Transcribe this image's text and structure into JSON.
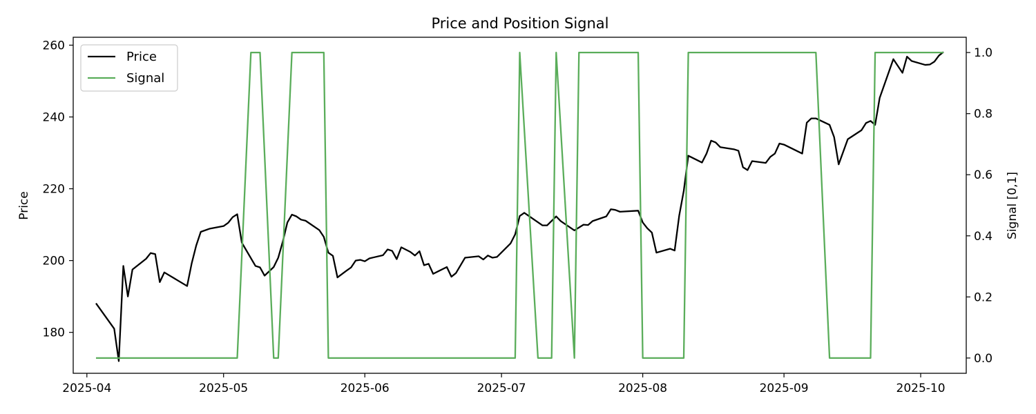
{
  "chart_data": {
    "type": "line",
    "title": "Price and Position Signal",
    "xlabel": "",
    "ylabel": "Price",
    "y2label": "Signal [0,1]",
    "x_type": "date",
    "xlim": [
      "2025-03-29",
      "2025-10-11"
    ],
    "ylim": [
      168.6,
      262.2
    ],
    "y2lim": [
      -0.05,
      1.05
    ],
    "xticks": [
      "2025-04-01",
      "2025-05-01",
      "2025-06-01",
      "2025-07-01",
      "2025-08-01",
      "2025-09-01",
      "2025-10-01"
    ],
    "xtick_labels": [
      "2025-04",
      "2025-05",
      "2025-06",
      "2025-07",
      "2025-08",
      "2025-09",
      "2025-10"
    ],
    "yticks": [
      180,
      200,
      220,
      240,
      260
    ],
    "y2ticks": [
      0.0,
      0.2,
      0.4,
      0.6,
      0.8,
      1.0
    ],
    "y2tick_labels": [
      "0.0",
      "0.2",
      "0.4",
      "0.6",
      "0.8",
      "1.0"
    ],
    "grid": false,
    "legend_position": "top-left",
    "series": [
      {
        "name": "Price",
        "axis": "left",
        "color": "#000000",
        "points": [
          [
            "2025-04-03",
            188.1
          ],
          [
            "2025-04-07",
            181.0
          ],
          [
            "2025-04-08",
            172.0
          ],
          [
            "2025-04-09",
            198.5
          ],
          [
            "2025-04-10",
            190.0
          ],
          [
            "2025-04-11",
            197.5
          ],
          [
            "2025-04-14",
            200.5
          ],
          [
            "2025-04-15",
            202.1
          ],
          [
            "2025-04-16",
            201.8
          ],
          [
            "2025-04-17",
            194.0
          ],
          [
            "2025-04-18",
            196.7
          ],
          [
            "2025-04-23",
            192.9
          ],
          [
            "2025-04-24",
            199.2
          ],
          [
            "2025-04-25",
            204.2
          ],
          [
            "2025-04-26",
            208.0
          ],
          [
            "2025-04-28",
            208.9
          ],
          [
            "2025-05-01",
            209.6
          ],
          [
            "2025-05-02",
            210.5
          ],
          [
            "2025-05-03",
            212.1
          ],
          [
            "2025-05-04",
            212.9
          ],
          [
            "2025-05-05",
            205.0
          ],
          [
            "2025-05-08",
            198.5
          ],
          [
            "2025-05-09",
            198.1
          ],
          [
            "2025-05-10",
            195.8
          ],
          [
            "2025-05-12",
            198.2
          ],
          [
            "2025-05-13",
            200.8
          ],
          [
            "2025-05-14",
            205.3
          ],
          [
            "2025-05-15",
            210.6
          ],
          [
            "2025-05-16",
            212.8
          ],
          [
            "2025-05-17",
            212.3
          ],
          [
            "2025-05-18",
            211.4
          ],
          [
            "2025-05-19",
            211.1
          ],
          [
            "2025-05-22",
            208.5
          ],
          [
            "2025-05-23",
            206.6
          ],
          [
            "2025-05-24",
            202.2
          ],
          [
            "2025-05-25",
            201.3
          ],
          [
            "2025-05-26",
            195.3
          ],
          [
            "2025-05-28",
            197.2
          ],
          [
            "2025-05-29",
            198.1
          ],
          [
            "2025-05-30",
            200.0
          ],
          [
            "2025-05-31",
            200.2
          ],
          [
            "2025-06-01",
            199.8
          ],
          [
            "2025-06-02",
            200.6
          ],
          [
            "2025-06-03",
            200.9
          ],
          [
            "2025-06-05",
            201.5
          ],
          [
            "2025-06-06",
            203.1
          ],
          [
            "2025-06-07",
            202.7
          ],
          [
            "2025-06-08",
            200.4
          ],
          [
            "2025-06-09",
            203.7
          ],
          [
            "2025-06-11",
            202.4
          ],
          [
            "2025-06-12",
            201.4
          ],
          [
            "2025-06-13",
            202.6
          ],
          [
            "2025-06-14",
            198.7
          ],
          [
            "2025-06-15",
            199.1
          ],
          [
            "2025-06-16",
            196.3
          ],
          [
            "2025-06-19",
            198.2
          ],
          [
            "2025-06-20",
            195.5
          ],
          [
            "2025-06-21",
            196.5
          ],
          [
            "2025-06-23",
            200.8
          ],
          [
            "2025-06-26",
            201.2
          ],
          [
            "2025-06-27",
            200.3
          ],
          [
            "2025-06-28",
            201.4
          ],
          [
            "2025-06-29",
            200.8
          ],
          [
            "2025-06-30",
            201.0
          ],
          [
            "2025-07-03",
            204.8
          ],
          [
            "2025-07-04",
            207.3
          ],
          [
            "2025-07-05",
            212.4
          ],
          [
            "2025-07-06",
            213.3
          ],
          [
            "2025-07-10",
            209.8
          ],
          [
            "2025-07-11",
            209.8
          ],
          [
            "2025-07-13",
            212.3
          ],
          [
            "2025-07-14",
            211.0
          ],
          [
            "2025-07-17",
            208.4
          ],
          [
            "2025-07-18",
            209.2
          ],
          [
            "2025-07-19",
            210.0
          ],
          [
            "2025-07-20",
            209.9
          ],
          [
            "2025-07-21",
            211.0
          ],
          [
            "2025-07-24",
            212.3
          ],
          [
            "2025-07-25",
            214.3
          ],
          [
            "2025-07-26",
            214.1
          ],
          [
            "2025-07-27",
            213.6
          ],
          [
            "2025-07-31",
            213.9
          ],
          [
            "2025-08-01",
            210.6
          ],
          [
            "2025-08-02",
            209.0
          ],
          [
            "2025-08-03",
            207.8
          ],
          [
            "2025-08-04",
            202.2
          ],
          [
            "2025-08-07",
            203.3
          ],
          [
            "2025-08-08",
            202.8
          ],
          [
            "2025-08-09",
            212.5
          ],
          [
            "2025-08-10",
            219.4
          ],
          [
            "2025-08-11",
            229.2
          ],
          [
            "2025-08-14",
            227.3
          ],
          [
            "2025-08-15",
            229.8
          ],
          [
            "2025-08-16",
            233.4
          ],
          [
            "2025-08-17",
            232.9
          ],
          [
            "2025-08-18",
            231.6
          ],
          [
            "2025-08-21",
            231.0
          ],
          [
            "2025-08-22",
            230.6
          ],
          [
            "2025-08-23",
            226.0
          ],
          [
            "2025-08-24",
            225.2
          ],
          [
            "2025-08-25",
            227.7
          ],
          [
            "2025-08-28",
            227.2
          ],
          [
            "2025-08-29",
            228.9
          ],
          [
            "2025-08-30",
            229.8
          ],
          [
            "2025-08-31",
            232.6
          ],
          [
            "2025-09-01",
            232.3
          ],
          [
            "2025-09-05",
            229.8
          ],
          [
            "2025-09-06",
            238.4
          ],
          [
            "2025-09-07",
            239.6
          ],
          [
            "2025-09-08",
            239.6
          ],
          [
            "2025-09-11",
            237.8
          ],
          [
            "2025-09-12",
            234.4
          ],
          [
            "2025-09-13",
            226.8
          ],
          [
            "2025-09-15",
            233.8
          ],
          [
            "2025-09-18",
            236.3
          ],
          [
            "2025-09-19",
            238.3
          ],
          [
            "2025-09-20",
            238.9
          ],
          [
            "2025-09-21",
            237.8
          ],
          [
            "2025-09-22",
            245.3
          ],
          [
            "2025-09-25",
            256.1
          ],
          [
            "2025-09-27",
            252.3
          ],
          [
            "2025-09-28",
            256.8
          ],
          [
            "2025-09-29",
            255.6
          ],
          [
            "2025-10-02",
            254.5
          ],
          [
            "2025-10-03",
            254.6
          ],
          [
            "2025-10-04",
            255.4
          ],
          [
            "2025-10-05",
            257.1
          ],
          [
            "2025-10-06",
            258.1
          ]
        ]
      },
      {
        "name": "Signal",
        "axis": "right",
        "color": "#5aad5a",
        "points": [
          [
            "2025-04-03",
            0
          ],
          [
            "2025-05-04",
            0
          ],
          [
            "2025-05-07",
            1
          ],
          [
            "2025-05-09",
            1
          ],
          [
            "2025-05-12",
            0
          ],
          [
            "2025-05-13",
            0
          ],
          [
            "2025-05-16",
            1
          ],
          [
            "2025-05-23",
            1
          ],
          [
            "2025-05-24",
            0
          ],
          [
            "2025-07-04",
            0
          ],
          [
            "2025-07-05",
            1
          ],
          [
            "2025-07-09",
            0
          ],
          [
            "2025-07-12",
            0
          ],
          [
            "2025-07-13",
            1
          ],
          [
            "2025-07-17",
            0
          ],
          [
            "2025-07-17",
            0
          ],
          [
            "2025-07-18",
            1
          ],
          [
            "2025-07-31",
            1
          ],
          [
            "2025-08-01",
            0
          ],
          [
            "2025-08-10",
            0
          ],
          [
            "2025-08-11",
            1
          ],
          [
            "2025-09-08",
            1
          ],
          [
            "2025-09-11",
            0
          ],
          [
            "2025-09-20",
            0
          ],
          [
            "2025-09-21",
            1
          ],
          [
            "2025-10-06",
            1
          ]
        ]
      }
    ]
  }
}
